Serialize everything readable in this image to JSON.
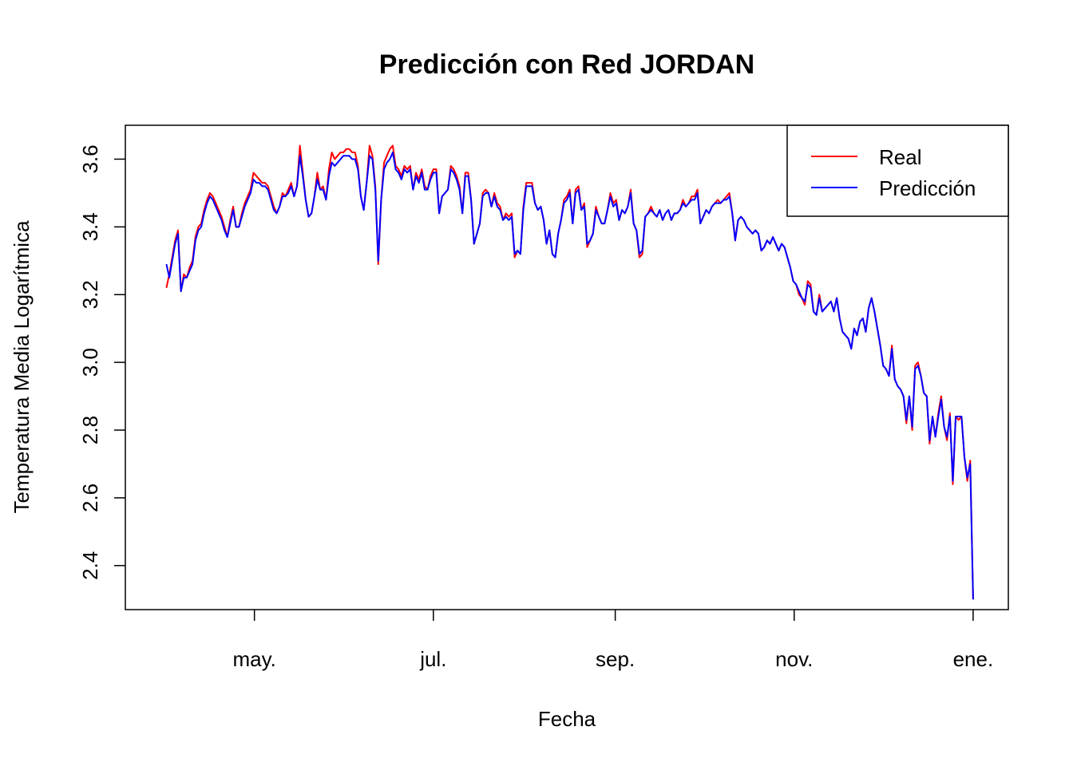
{
  "chart_data": {
    "type": "line",
    "title": "Predicción con Red JORDAN",
    "xlabel": "Fecha",
    "ylabel": "Temperatura Media Logarítmica",
    "x_ticks": [
      "may.",
      "jul.",
      "sep.",
      "nov.",
      "ene."
    ],
    "x_tick_dates": [
      "2021-05-01",
      "2021-07-01",
      "2021-09-01",
      "2021-11-01",
      "2022-01-01"
    ],
    "y_ticks": [
      "2.4",
      "2.6",
      "2.8",
      "3.0",
      "3.2",
      "3.4",
      "3.6"
    ],
    "xlim": [
      "2021-03-18",
      "2022-01-13"
    ],
    "ylim": [
      2.27,
      3.7
    ],
    "legend_position": "top-right",
    "legend": [
      {
        "label": "Real",
        "color": "#ff0000"
      },
      {
        "label": "Predicción",
        "color": "#0000ff"
      }
    ],
    "start_date": "2021-04-01",
    "series": [
      {
        "name": "Real",
        "color": "#ff0000",
        "values": [
          3.22,
          3.26,
          3.31,
          3.36,
          3.39,
          3.21,
          3.26,
          3.25,
          3.28,
          3.3,
          3.37,
          3.4,
          3.41,
          3.45,
          3.48,
          3.5,
          3.49,
          3.47,
          3.45,
          3.43,
          3.4,
          3.37,
          3.42,
          3.46,
          3.4,
          3.4,
          3.44,
          3.47,
          3.49,
          3.51,
          3.56,
          3.55,
          3.54,
          3.53,
          3.53,
          3.52,
          3.49,
          3.46,
          3.44,
          3.46,
          3.5,
          3.49,
          3.51,
          3.53,
          3.49,
          3.52,
          3.64,
          3.56,
          3.48,
          3.43,
          3.44,
          3.49,
          3.56,
          3.51,
          3.52,
          3.48,
          3.57,
          3.62,
          3.6,
          3.61,
          3.62,
          3.62,
          3.63,
          3.63,
          3.62,
          3.62,
          3.58,
          3.49,
          3.45,
          3.53,
          3.64,
          3.61,
          3.52,
          3.29,
          3.48,
          3.59,
          3.61,
          3.63,
          3.64,
          3.58,
          3.57,
          3.55,
          3.58,
          3.57,
          3.58,
          3.51,
          3.56,
          3.54,
          3.57,
          3.52,
          3.51,
          3.55,
          3.57,
          3.57,
          3.44,
          3.49,
          3.5,
          3.51,
          3.58,
          3.57,
          3.55,
          3.52,
          3.44,
          3.56,
          3.56,
          3.48,
          3.35,
          3.38,
          3.41,
          3.5,
          3.51,
          3.5,
          3.46,
          3.5,
          3.47,
          3.46,
          3.42,
          3.44,
          3.43,
          3.44,
          3.31,
          3.33,
          3.32,
          3.46,
          3.53,
          3.53,
          3.53,
          3.47,
          3.45,
          3.46,
          3.42,
          3.35,
          3.39,
          3.32,
          3.31,
          3.38,
          3.42,
          3.48,
          3.49,
          3.51,
          3.41,
          3.51,
          3.52,
          3.45,
          3.47,
          3.34,
          3.36,
          3.38,
          3.46,
          3.43,
          3.41,
          3.41,
          3.45,
          3.5,
          3.47,
          3.48,
          3.42,
          3.45,
          3.44,
          3.46,
          3.51,
          3.41,
          3.39,
          3.31,
          3.32,
          3.43,
          3.44,
          3.46,
          3.44,
          3.43,
          3.45,
          3.42,
          3.44,
          3.45,
          3.42,
          3.44,
          3.44,
          3.45,
          3.48,
          3.46,
          3.47,
          3.49,
          3.49,
          3.51,
          3.41,
          3.43,
          3.45,
          3.44,
          3.46,
          3.47,
          3.48,
          3.47,
          3.48,
          3.49,
          3.5,
          3.44,
          3.36,
          3.42,
          3.43,
          3.42,
          3.4,
          3.39,
          3.38,
          3.39,
          3.38,
          3.33,
          3.34,
          3.36,
          3.35,
          3.37,
          3.35,
          3.33,
          3.35,
          3.34,
          3.31,
          3.28,
          3.24,
          3.23,
          3.2,
          3.19,
          3.17,
          3.24,
          3.23,
          3.15,
          3.14,
          3.2,
          3.15,
          3.16,
          3.17,
          3.18,
          3.15,
          3.19,
          3.13,
          3.09,
          3.08,
          3.07,
          3.04,
          3.1,
          3.08,
          3.12,
          3.13,
          3.09,
          3.16,
          3.19,
          3.15,
          3.1,
          3.05,
          2.99,
          2.98,
          2.96,
          3.05,
          2.95,
          2.93,
          2.92,
          2.9,
          2.82,
          2.9,
          2.8,
          2.99,
          3.0,
          2.96,
          2.91,
          2.9,
          2.76,
          2.84,
          2.78,
          2.85,
          2.9,
          2.81,
          2.77,
          2.85,
          2.64,
          2.84,
          2.83,
          2.84,
          2.72,
          2.65,
          2.71,
          2.3
        ]
      },
      {
        "name": "Predicción",
        "color": "#0000ff",
        "values": [
          3.29,
          3.25,
          3.3,
          3.35,
          3.38,
          3.21,
          3.25,
          3.25,
          3.27,
          3.29,
          3.36,
          3.39,
          3.4,
          3.44,
          3.47,
          3.49,
          3.48,
          3.46,
          3.44,
          3.42,
          3.39,
          3.37,
          3.41,
          3.45,
          3.4,
          3.4,
          3.43,
          3.46,
          3.48,
          3.5,
          3.54,
          3.53,
          3.53,
          3.52,
          3.52,
          3.51,
          3.48,
          3.45,
          3.44,
          3.46,
          3.49,
          3.49,
          3.5,
          3.52,
          3.49,
          3.52,
          3.61,
          3.55,
          3.48,
          3.43,
          3.44,
          3.49,
          3.54,
          3.51,
          3.51,
          3.48,
          3.55,
          3.59,
          3.58,
          3.59,
          3.6,
          3.61,
          3.61,
          3.61,
          3.6,
          3.6,
          3.57,
          3.49,
          3.45,
          3.53,
          3.61,
          3.6,
          3.51,
          3.3,
          3.48,
          3.57,
          3.59,
          3.6,
          3.62,
          3.57,
          3.56,
          3.54,
          3.57,
          3.56,
          3.57,
          3.51,
          3.55,
          3.53,
          3.56,
          3.51,
          3.51,
          3.54,
          3.56,
          3.56,
          3.44,
          3.49,
          3.5,
          3.51,
          3.57,
          3.56,
          3.54,
          3.51,
          3.44,
          3.55,
          3.55,
          3.48,
          3.35,
          3.38,
          3.41,
          3.49,
          3.5,
          3.5,
          3.46,
          3.49,
          3.46,
          3.45,
          3.42,
          3.43,
          3.42,
          3.43,
          3.32,
          3.33,
          3.32,
          3.45,
          3.52,
          3.52,
          3.52,
          3.47,
          3.45,
          3.46,
          3.42,
          3.35,
          3.39,
          3.32,
          3.31,
          3.38,
          3.42,
          3.47,
          3.48,
          3.5,
          3.41,
          3.5,
          3.51,
          3.45,
          3.46,
          3.35,
          3.36,
          3.38,
          3.45,
          3.43,
          3.41,
          3.41,
          3.45,
          3.49,
          3.46,
          3.47,
          3.42,
          3.45,
          3.44,
          3.46,
          3.5,
          3.41,
          3.39,
          3.32,
          3.33,
          3.43,
          3.44,
          3.45,
          3.44,
          3.43,
          3.45,
          3.42,
          3.44,
          3.45,
          3.42,
          3.44,
          3.44,
          3.45,
          3.47,
          3.46,
          3.47,
          3.48,
          3.48,
          3.5,
          3.41,
          3.43,
          3.45,
          3.44,
          3.46,
          3.47,
          3.47,
          3.47,
          3.48,
          3.48,
          3.49,
          3.44,
          3.36,
          3.42,
          3.43,
          3.42,
          3.4,
          3.39,
          3.38,
          3.39,
          3.38,
          3.33,
          3.34,
          3.36,
          3.35,
          3.37,
          3.35,
          3.33,
          3.35,
          3.34,
          3.31,
          3.28,
          3.24,
          3.23,
          3.21,
          3.19,
          3.18,
          3.23,
          3.22,
          3.15,
          3.14,
          3.19,
          3.15,
          3.16,
          3.17,
          3.18,
          3.15,
          3.19,
          3.13,
          3.09,
          3.08,
          3.07,
          3.04,
          3.1,
          3.08,
          3.12,
          3.13,
          3.09,
          3.16,
          3.19,
          3.15,
          3.1,
          3.05,
          2.99,
          2.98,
          2.96,
          3.04,
          2.95,
          2.93,
          2.92,
          2.9,
          2.83,
          2.9,
          2.81,
          2.98,
          2.99,
          2.96,
          2.91,
          2.9,
          2.77,
          2.84,
          2.78,
          2.84,
          2.89,
          2.81,
          2.78,
          2.84,
          2.65,
          2.84,
          2.84,
          2.84,
          2.72,
          2.66,
          2.7,
          2.3
        ]
      }
    ]
  }
}
